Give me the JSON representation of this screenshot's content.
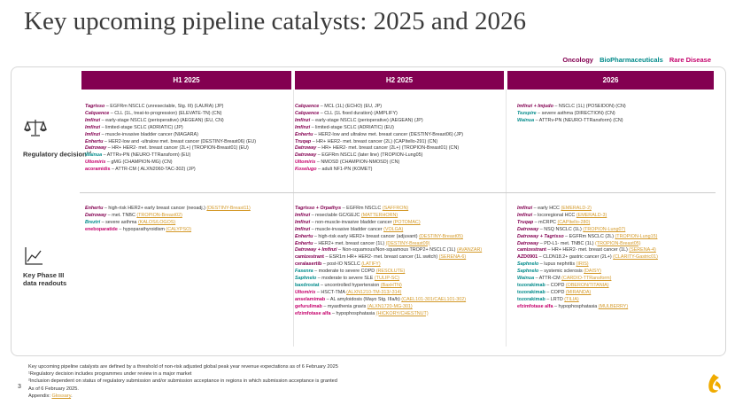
{
  "title": "Key upcoming pipeline catalysts: 2025 and 2026",
  "legend": {
    "oncology": "Oncology",
    "biopharma": "BioPharmaceuticals",
    "rare": "Rare Disease"
  },
  "colors": {
    "oncology": "#830051",
    "biopharma": "#008a8a",
    "rare": "#c4006b",
    "header_bg": "#830051",
    "annotation": "#d49a2a"
  },
  "columns": {
    "h1": "H1 2025",
    "h2": "H2 2025",
    "y2026": "2026"
  },
  "rows": {
    "regulatory": {
      "label": "Regulatory decision",
      "sup": "1,2",
      "icon": "scales-icon"
    },
    "phase3": {
      "label_line1": "Key Phase III",
      "label_line2": "data readouts",
      "icon": "line-chart-icon"
    }
  },
  "regulatory": {
    "h1": [
      {
        "drug": "Tagrisso",
        "area": "onc",
        "text": " – EGFRm NSCLC (unresectable, Stg. III) (LAURA) (JP)"
      },
      {
        "drug": "Calquence",
        "area": "onc",
        "text": " – CLL (1L, treat-to-progression) (ELEVATE-TN) (CN)"
      },
      {
        "drug": "Imfinzi",
        "area": "onc",
        "text": " – early-stage NSCLC (perioperative) (AEGEAN) (EU, CN)"
      },
      {
        "drug": "Imfinzi",
        "area": "onc",
        "text": " – limited-stage SCLC (ADRIATIC) (JP)"
      },
      {
        "drug": "Imfinzi",
        "area": "onc",
        "text": " – muscle-invasive bladder cancer (NIAGARA)"
      },
      {
        "drug": "Enhertu",
        "area": "onc",
        "text": " – HER2-low and -ultralow met. breast cancer (DESTINY-Breast06) (EU)"
      },
      {
        "drug": "Datroway",
        "area": "onc",
        "text": " – HR+ HER2- met. breast cancer (2L+) (TROPION-Breast01) (EU)"
      },
      {
        "drug": "Wainua",
        "area": "bio",
        "text": " – ATTRv-PN (NEURO-TTRansform) (EU)"
      },
      {
        "drug": "Ultomiris",
        "area": "rare",
        "text": " – gMG (CHAMPION-MG) (CN)"
      },
      {
        "drug": "acoramidis",
        "area": "rare",
        "plain": true,
        "text": " – ATTR-CM ( ALXN2060-TAC-302) (JP)"
      }
    ],
    "h2": [
      {
        "drug": "Calquence",
        "area": "onc",
        "text": " – MCL (1L) (ECHO) (EU, JP)"
      },
      {
        "drug": "Calquence",
        "area": "onc",
        "text": " – CLL (1L fixed duration) (AMPLIFY)"
      },
      {
        "drug": "Imfinzi",
        "area": "onc",
        "text": " – early-stage NSCLC (perioperative) (AEGEAN) (JP)"
      },
      {
        "drug": "Imfinzi",
        "area": "onc",
        "text": " – limited-stage SCLC (ADRIATIC) (EU)"
      },
      {
        "drug": "Enhertu",
        "area": "onc",
        "text": " – HER2-low and ultralow met. breast cancer (DESTINY-Breast06) (JP)"
      },
      {
        "drug": "Truqap",
        "area": "onc",
        "text": " – HR+ HER2- met. breast cancer (2L) (CAPItello-291) (CN)"
      },
      {
        "drug": "Datroway",
        "area": "onc",
        "text": " – HR+ HER2- met. breast cancer (2L+) (TROPION-Breast01) (CN)"
      },
      {
        "drug": "Datroway",
        "area": "onc",
        "text": " – EGFRm NSCLC (later line) (TROPION-Lung05)"
      },
      {
        "drug": "Ultomiris",
        "area": "rare",
        "text": " – NMOSD (CHAMPION-NMOSD) (CN)"
      },
      {
        "drug": "Koselugo",
        "area": "rare",
        "text": " – adult NF1-PN (KOMET)"
      }
    ],
    "y2026": [
      {
        "drug": "Imfinzi + Imjudo",
        "area": "onc",
        "text": " – NSCLC (1L) (POSEIDON) (CN)"
      },
      {
        "drug": "Tezspire",
        "area": "bio",
        "text": " – severe asthma (DIRECTION) (CN)"
      },
      {
        "drug": "Wainua",
        "area": "bio",
        "text": " – ATTRv-PN (NEURO-TTRansform) (CN)"
      }
    ]
  },
  "phase3": {
    "h1": [
      {
        "drug": "Enhertu",
        "area": "onc",
        "text": " – high-risk HER2+ early breast cancer (neoadj.) ",
        "ann": "(DESTINY-Breast11)"
      },
      {
        "drug": "Datroway",
        "area": "onc",
        "text": " – met. TNBC ",
        "ann": "(TROPION-Breast02)"
      },
      {
        "drug": "Breztri",
        "area": "bio",
        "text": " – severe asthma ",
        "ann": "(KALOS/LOGOS)"
      },
      {
        "drug": "eneboparatide",
        "area": "rare",
        "plain": true,
        "text": " – hypoparathyroidism ",
        "ann": "(CALYPSO)"
      }
    ],
    "h2": [
      {
        "drug": "Tagrisso + Orpathys",
        "area": "onc",
        "text": " – EGFRm NSCLC ",
        "ann": "(SAFFRON)"
      },
      {
        "drug": "Imfinzi",
        "area": "onc",
        "text": " – resectable GC/GEJC ",
        "ann": "(MATTERHORN)"
      },
      {
        "drug": "Imfinzi",
        "area": "onc",
        "text": " – non-muscle-invasive bladder cancer ",
        "ann": "(POTOMAC)"
      },
      {
        "drug": "Imfinzi",
        "area": "onc",
        "text": " – muscle-invasive bladder cancer ",
        "ann": "(VOLGA)"
      },
      {
        "drug": "Enhertu",
        "area": "onc",
        "text": " – high-risk early HER2+ breast cancer (adjuvant) ",
        "ann": "(DESTINY-Breast05)"
      },
      {
        "drug": "Enhertu",
        "area": "onc",
        "text": " – HER2+ met. breast cancer (1L) ",
        "ann": "(DESTINY-Breast09)"
      },
      {
        "drug": "Datroway + Imfinzi",
        "area": "onc",
        "text": " – Non-squamous/Non-squamous TROP2+ NSCLC (1L) ",
        "ann": "(AVANZAR)"
      },
      {
        "drug": "camizestrant",
        "area": "onc",
        "plain": true,
        "text": " – ESR1m HR+ HER2- met. breast cancer (1L switch) ",
        "ann": "(SERENA-6)"
      },
      {
        "drug": "ceralasertib",
        "area": "onc",
        "plain": true,
        "text": " – post-IO NSCLC ",
        "ann": "(LATIFY)"
      },
      {
        "drug": "Fasenra",
        "area": "bio",
        "text": " – moderate to severe COPD ",
        "ann": "(RESOLUTE)"
      },
      {
        "drug": "Saphnelo",
        "area": "bio",
        "text": " – moderate to severe SLE ",
        "ann": "(TULIP-SC)"
      },
      {
        "drug": "baxdrostat",
        "area": "bio",
        "plain": true,
        "text": " – uncontrolled hypertension ",
        "ann": "(BaxHTN)"
      },
      {
        "drug": "Ultomiris",
        "area": "rare",
        "text": " – HSCT-TMA ",
        "ann": "(ALXN1210-TM-313/-314)"
      },
      {
        "drug": "anselamimab",
        "area": "rare",
        "plain": true,
        "text": " – AL amyloidosis (Mayo Stg. IIIa/b) ",
        "ann": "(CAEL101-301/CAEL101-302)"
      },
      {
        "drug": "gefurulimab",
        "area": "rare",
        "plain": true,
        "text": " – myasthenia gravis ",
        "ann": "(ALXN1720-MG-301)"
      },
      {
        "drug": "efzimfotase alfa",
        "area": "rare",
        "plain": true,
        "text": " – hypophosphatasia ",
        "ann": "(HICKORY/CHESTNUT)"
      }
    ],
    "y2026": [
      {
        "drug": "Imfinzi",
        "area": "onc",
        "text": " – early HCC ",
        "ann": "(EMERALD-2)"
      },
      {
        "drug": "Imfinzi",
        "area": "onc",
        "text": " – locoregional HCC ",
        "ann": "(EMERALD-3)"
      },
      {
        "drug": "Truqap",
        "area": "onc",
        "text": " – mCRPC ",
        "ann": "(CAPItello-280)"
      },
      {
        "drug": "Datroway",
        "area": "onc",
        "text": " – NSQ NSCLC (1L) ",
        "ann": "(TROPION-Lung07)"
      },
      {
        "drug": "Datroway + Tagrisso",
        "area": "onc",
        "text": " – EGFRm NSCLC (2L) ",
        "ann": "(TROPION-Lung15)"
      },
      {
        "drug": "Datroway",
        "area": "onc",
        "text": " – PD-L1- met. TNBC (1L) ",
        "ann": "(TROPION-Breast05)"
      },
      {
        "drug": "camizestrant",
        "area": "onc",
        "plain": true,
        "text": " – HR+ HER2- met. breast cancer (1L) ",
        "ann": "(SERENA-4)"
      },
      {
        "drug": "AZD0901",
        "area": "onc",
        "plain": true,
        "text": " – CLDN18.2+ gastric cancer (2L+) ",
        "ann": "(CLARITY-Gastric01)"
      },
      {
        "drug": "Saphnelo",
        "area": "bio",
        "text": " – lupus nephritis ",
        "ann": "(IRIS)"
      },
      {
        "drug": "Saphnelo",
        "area": "bio",
        "text": " – systemic sclerosis ",
        "ann": "(DAISY)"
      },
      {
        "drug": "Wainua",
        "area": "bio",
        "text": " – ATTR-CM ",
        "ann": "(CARDIO-TTRansform)"
      },
      {
        "drug": "tozorakimab",
        "area": "bio",
        "plain": true,
        "text": " – COPD ",
        "ann": "(OBERON/TITANIA)"
      },
      {
        "drug": "tozorakimab",
        "area": "bio",
        "plain": true,
        "text": " – COPD ",
        "ann": "(MIRANDA)"
      },
      {
        "drug": "tozorakimab",
        "area": "bio",
        "plain": true,
        "text": " – LRTD ",
        "ann": "(TILIA)"
      },
      {
        "drug": "efzimfotase alfa",
        "area": "rare",
        "plain": true,
        "text": " – hypophosphatasia ",
        "ann": "(MULBERRY)"
      }
    ]
  },
  "footnotes": [
    "Key upcoming pipeline catalysts are defined by a threshold of non-risk adjusted global peak year revenue expectations as of 6 February 2025",
    "¹Regulatory decision includes programmes under review in a major market",
    "²Inclusion dependent on status of regulatory submission and/or submission acceptance in regions in which submission acceptance is granted",
    "As of 6 February 2025."
  ],
  "appendix": {
    "label": "Appendix: ",
    "link": "Glossary",
    "suffix": "."
  },
  "page_number": "3",
  "logo_icon": "astrazeneca-logo-icon"
}
